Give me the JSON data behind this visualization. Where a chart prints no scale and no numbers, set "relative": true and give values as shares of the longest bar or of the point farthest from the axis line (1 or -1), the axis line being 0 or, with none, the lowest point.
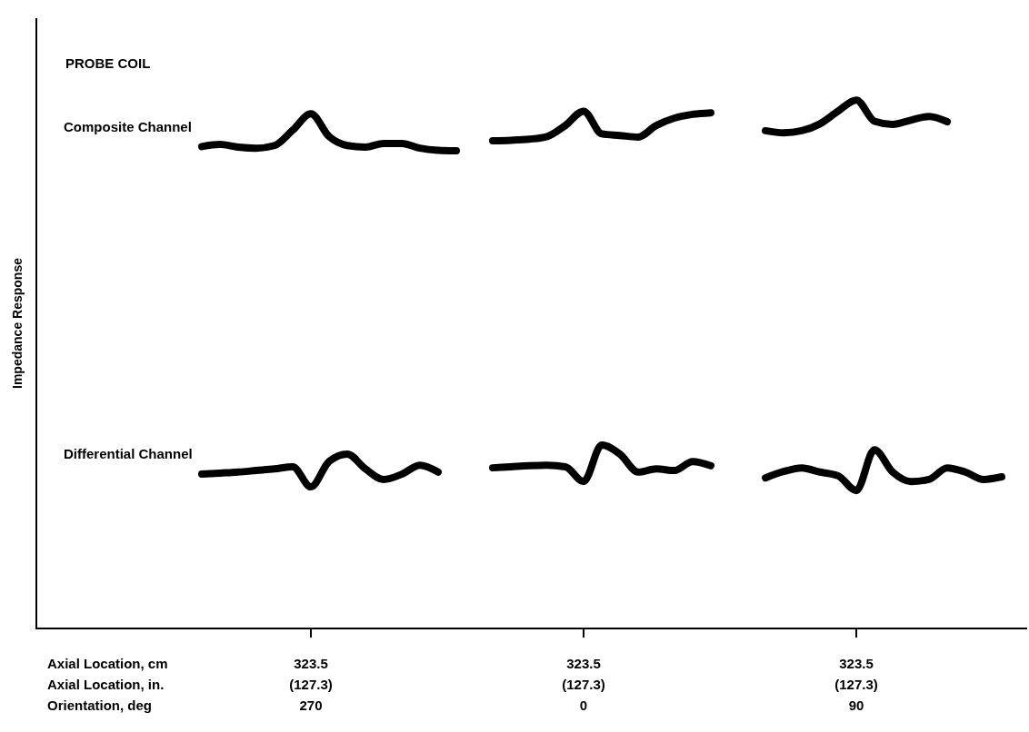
{
  "chart_data": {
    "type": "line",
    "relative": true,
    "ylabel": "Impedance Response",
    "xlabel": "Axial Location, cm\nAxial Location, in.\nOrientation, deg",
    "annotations": [
      "PROBE COIL",
      "Composite Channel",
      "Differential Channel"
    ],
    "categories": [
      null,
      null,
      null,
      null,
      null,
      null,
      null,
      null,
      null,
      null,
      null,
      null,
      null,
      null,
      null,
      "323.5\n(127.3)\n270",
      null,
      null,
      null,
      null,
      null,
      null,
      null,
      null,
      null,
      null,
      null,
      null,
      null,
      null,
      "323.5\n(127.3)\n0",
      null,
      null,
      null,
      null,
      null,
      null,
      null,
      null,
      null,
      null,
      null,
      null,
      null,
      null,
      "323.5\n(127.3)\n90",
      null,
      null,
      null,
      null,
      null,
      null,
      null,
      null,
      null
    ],
    "grid": false,
    "marker": "none",
    "line_style": "solid",
    "series": [
      {
        "color": "#000000",
        "values": [
          null,
          null,
          null,
          null,
          null,
          null,
          null,
          null,
          null,
          0.912,
          0.916,
          0.911,
          0.909,
          0.914,
          0.943,
          0.974,
          0.931,
          0.914,
          0.911,
          0.918,
          0.918,
          0.909,
          0.905,
          0.904,
          null,
          null,
          null,
          null,
          null,
          null,
          null,
          null,
          null,
          null,
          null,
          null,
          null,
          null,
          null,
          null,
          null,
          null,
          null,
          null,
          null,
          null,
          null,
          null,
          null,
          null,
          null,
          null,
          null,
          null,
          null
        ]
      },
      {
        "color": "#000000",
        "values": [
          null,
          null,
          null,
          null,
          null,
          null,
          null,
          null,
          null,
          null,
          null,
          null,
          null,
          null,
          null,
          null,
          null,
          null,
          null,
          null,
          null,
          null,
          null,
          null,
          null,
          0.923,
          0.924,
          0.926,
          0.931,
          0.952,
          0.979,
          0.936,
          0.933,
          0.93,
          0.952,
          0.966,
          0.973,
          0.976,
          null,
          null,
          null,
          null,
          null,
          null,
          null,
          null,
          null,
          null,
          null,
          null,
          null,
          null,
          null,
          null,
          null
        ]
      },
      {
        "color": "#000000",
        "values": [
          null,
          null,
          null,
          null,
          null,
          null,
          null,
          null,
          null,
          null,
          null,
          null,
          null,
          null,
          null,
          null,
          null,
          null,
          null,
          null,
          null,
          null,
          null,
          null,
          null,
          null,
          null,
          null,
          null,
          null,
          null,
          null,
          null,
          null,
          null,
          null,
          null,
          null,
          null,
          null,
          0.942,
          0.938,
          0.942,
          0.955,
          0.979,
          1,
          0.96,
          0.954,
          0.962,
          0.969,
          0.959,
          null,
          null,
          null,
          null
        ]
      },
      {
        "color": "#000000",
        "values": [
          null,
          null,
          null,
          null,
          null,
          null,
          null,
          null,
          null,
          0.292,
          0.294,
          0.296,
          0.299,
          0.302,
          0.306,
          0.268,
          0.316,
          0.33,
          0.302,
          0.282,
          0.292,
          0.309,
          0.296,
          null,
          null,
          null,
          null,
          null,
          null,
          null,
          null,
          null,
          null,
          null,
          null,
          null,
          null,
          null,
          null,
          null,
          null,
          null,
          null,
          null,
          null,
          null,
          null,
          null,
          null,
          null,
          null,
          null,
          null,
          null,
          null
        ]
      },
      {
        "color": "#000000",
        "values": [
          null,
          null,
          null,
          null,
          null,
          null,
          null,
          null,
          null,
          null,
          null,
          null,
          null,
          null,
          null,
          null,
          null,
          null,
          null,
          null,
          null,
          null,
          null,
          null,
          null,
          0.304,
          0.306,
          0.308,
          0.309,
          0.306,
          0.278,
          0.347,
          0.33,
          0.296,
          0.302,
          0.299,
          0.316,
          0.308,
          null,
          null,
          null,
          null,
          null,
          null,
          null,
          null,
          null,
          null,
          null,
          null,
          null,
          null,
          null,
          null,
          null
        ]
      },
      {
        "color": "#000000",
        "values": [
          null,
          null,
          null,
          null,
          null,
          null,
          null,
          null,
          null,
          null,
          null,
          null,
          null,
          null,
          null,
          null,
          null,
          null,
          null,
          null,
          null,
          null,
          null,
          null,
          null,
          null,
          null,
          null,
          null,
          null,
          null,
          null,
          null,
          null,
          null,
          null,
          null,
          null,
          null,
          null,
          0.285,
          0.297,
          0.304,
          0.296,
          0.289,
          0.261,
          0.338,
          0.296,
          0.278,
          0.282,
          0.304,
          0.296,
          0.282,
          0.287,
          null
        ]
      }
    ]
  }
}
